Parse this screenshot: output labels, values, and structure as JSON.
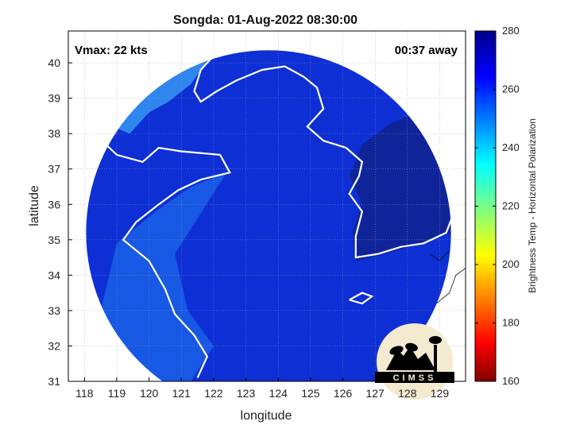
{
  "figure": {
    "title": "Songda: 01-Aug-2022 08:30:00",
    "vmax_text": "Vmax: 22 kts",
    "time_text": "00:37 away"
  },
  "axes": {
    "xlabel": "longitude",
    "ylabel": "latitude",
    "xlim": [
      117.5,
      129.8
    ],
    "ylim": [
      31,
      40.9
    ],
    "xticks": [
      118,
      119,
      120,
      121,
      122,
      123,
      124,
      125,
      126,
      127,
      128,
      129
    ],
    "yticks": [
      31,
      32,
      33,
      34,
      35,
      36,
      37,
      38,
      39,
      40
    ],
    "grid": true
  },
  "colorbar": {
    "label": "Brightness Temp - Horizontal Polarization",
    "range": [
      160,
      280
    ],
    "ticks": [
      160,
      180,
      200,
      220,
      240,
      260,
      280
    ],
    "colormap": "jet"
  },
  "swath": {
    "center": [
      123.7,
      35.2
    ],
    "radius_deg_lon": 5.65,
    "radius_deg_lat": 4.5
  },
  "logo": {
    "text": "CIMSS"
  }
}
